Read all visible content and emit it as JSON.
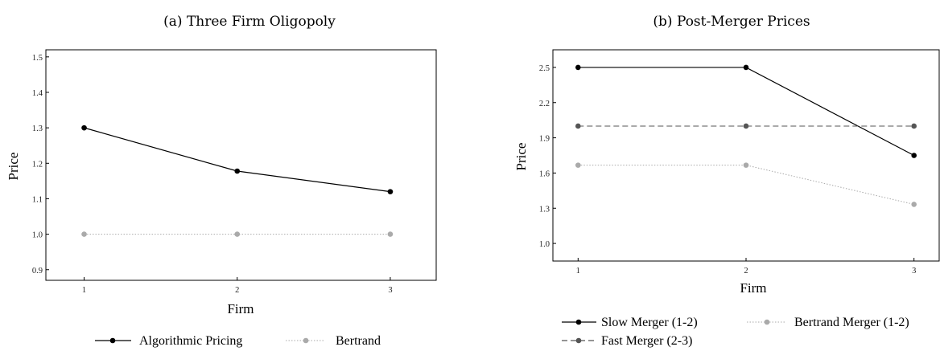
{
  "chart_data": [
    {
      "type": "line",
      "title": "(a) Three Firm Oligopoly",
      "xlabel": "Firm",
      "ylabel": "Price",
      "x": [
        1,
        2,
        3
      ],
      "x_ticks": [
        "1",
        "2",
        "3"
      ],
      "xlim": [
        0.75,
        3.3
      ],
      "ylim": [
        0.87,
        1.52
      ],
      "y_ticks": [
        "0.9",
        "1.0",
        "1.1",
        "1.2",
        "1.3",
        "1.4",
        "1.5"
      ],
      "legend_position": "bottom",
      "series": [
        {
          "name": "Algorithmic Pricing",
          "values": [
            1.3,
            1.178,
            1.12
          ],
          "color": "#000000",
          "dash": "solid"
        },
        {
          "name": "Bertrand",
          "values": [
            1.0,
            1.0,
            1.0
          ],
          "color": "#aaaaaa",
          "dash": "dotted"
        }
      ]
    },
    {
      "type": "line",
      "title": "(b) Post-Merger Prices",
      "xlabel": "Firm",
      "ylabel": "Price",
      "x": [
        1,
        2,
        3
      ],
      "x_ticks": [
        "1",
        "2",
        "3"
      ],
      "xlim": [
        0.85,
        3.15
      ],
      "ylim": [
        0.85,
        2.65
      ],
      "y_ticks": [
        "1.0",
        "1.3",
        "1.6",
        "1.9",
        "2.2",
        "2.5"
      ],
      "legend_position": "bottom",
      "series": [
        {
          "name": "Slow Merger (1-2)",
          "values": [
            2.5,
            2.5,
            1.75
          ],
          "color": "#000000",
          "dash": "solid"
        },
        {
          "name": "Bertrand Merger (1-2)",
          "values": [
            1.667,
            1.667,
            1.333
          ],
          "color": "#aaaaaa",
          "dash": "dotted"
        },
        {
          "name": "Fast Merger (2-3)",
          "values": [
            2.0,
            2.0,
            2.0
          ],
          "color": "#555555",
          "dash": "dashed"
        }
      ]
    }
  ]
}
